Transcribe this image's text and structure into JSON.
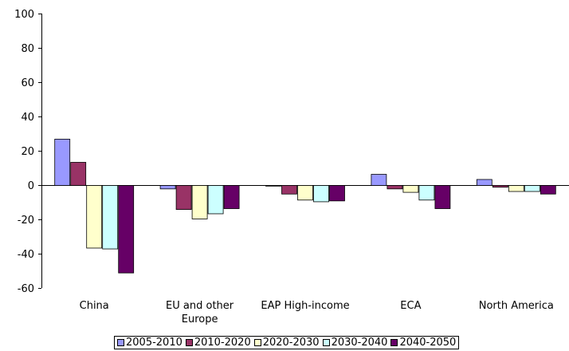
{
  "chart_data": {
    "type": "bar",
    "categories": [
      "China",
      "EU and other Europe",
      "EAP High-income",
      "ECA",
      "North America"
    ],
    "category_lines": [
      [
        "China"
      ],
      [
        "EU and other",
        "Europe"
      ],
      [
        "EAP High-income"
      ],
      [
        "ECA"
      ],
      [
        "North America"
      ]
    ],
    "series": [
      {
        "name": "2005-2010",
        "color": "#9999ff",
        "values": [
          27,
          -2,
          0,
          6.5,
          3.5
        ]
      },
      {
        "name": "2010-2020",
        "color": "#993366",
        "values": [
          13.5,
          -14,
          -5,
          -2,
          -1
        ]
      },
      {
        "name": "2020-2030",
        "color": "#ffffcc",
        "values": [
          -36.5,
          -19.5,
          -8.5,
          -4,
          -3.5
        ]
      },
      {
        "name": "2030-2040",
        "color": "#ccffff",
        "values": [
          -37,
          -16.5,
          -9.5,
          -8.5,
          -3.5
        ]
      },
      {
        "name": "2040-2050",
        "color": "#660066",
        "values": [
          -51,
          -13.5,
          -9,
          -13.5,
          -5
        ]
      }
    ],
    "ylim": [
      -60,
      100
    ],
    "yticks": [
      100,
      80,
      60,
      40,
      20,
      0,
      -20,
      -40,
      -60
    ],
    "legend_position": "bottom",
    "grid": false
  }
}
